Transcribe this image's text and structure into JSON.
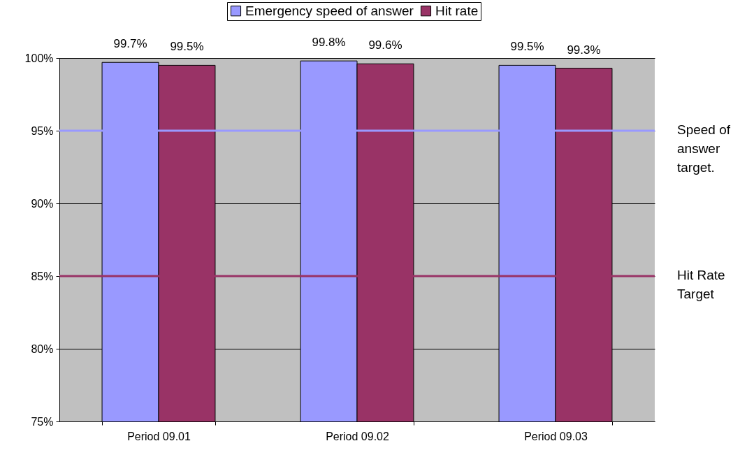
{
  "chart_data": {
    "type": "bar",
    "categories": [
      "Period 09.01",
      "Period 09.02",
      "Period 09.03"
    ],
    "series": [
      {
        "name": "Emergency speed of answer",
        "color": "#9999ff",
        "values": [
          99.7,
          99.8,
          99.5
        ],
        "value_labels": [
          "99.7%",
          "99.8%",
          "99.5%"
        ]
      },
      {
        "name": "Hit rate",
        "color": "#993366",
        "values": [
          99.5,
          99.6,
          99.3
        ],
        "value_labels": [
          "99.5%",
          "99.6%",
          "99.3%"
        ]
      }
    ],
    "ylim": [
      75,
      100
    ],
    "yticks": [
      {
        "value": 75,
        "label": "75%"
      },
      {
        "value": 80,
        "label": "80%"
      },
      {
        "value": 85,
        "label": "85%"
      },
      {
        "value": 90,
        "label": "90%"
      },
      {
        "value": 95,
        "label": "95%"
      },
      {
        "value": 100,
        "label": "100%"
      }
    ],
    "grid": "y",
    "legend": "top",
    "ref_lines": [
      {
        "axis": "y",
        "value": 95,
        "label": "Speed of\nanswer\ntarget.",
        "color": "#9999ff"
      },
      {
        "axis": "y",
        "value": 85,
        "label": "Hit Rate\nTarget",
        "color": "#993366"
      }
    ]
  }
}
